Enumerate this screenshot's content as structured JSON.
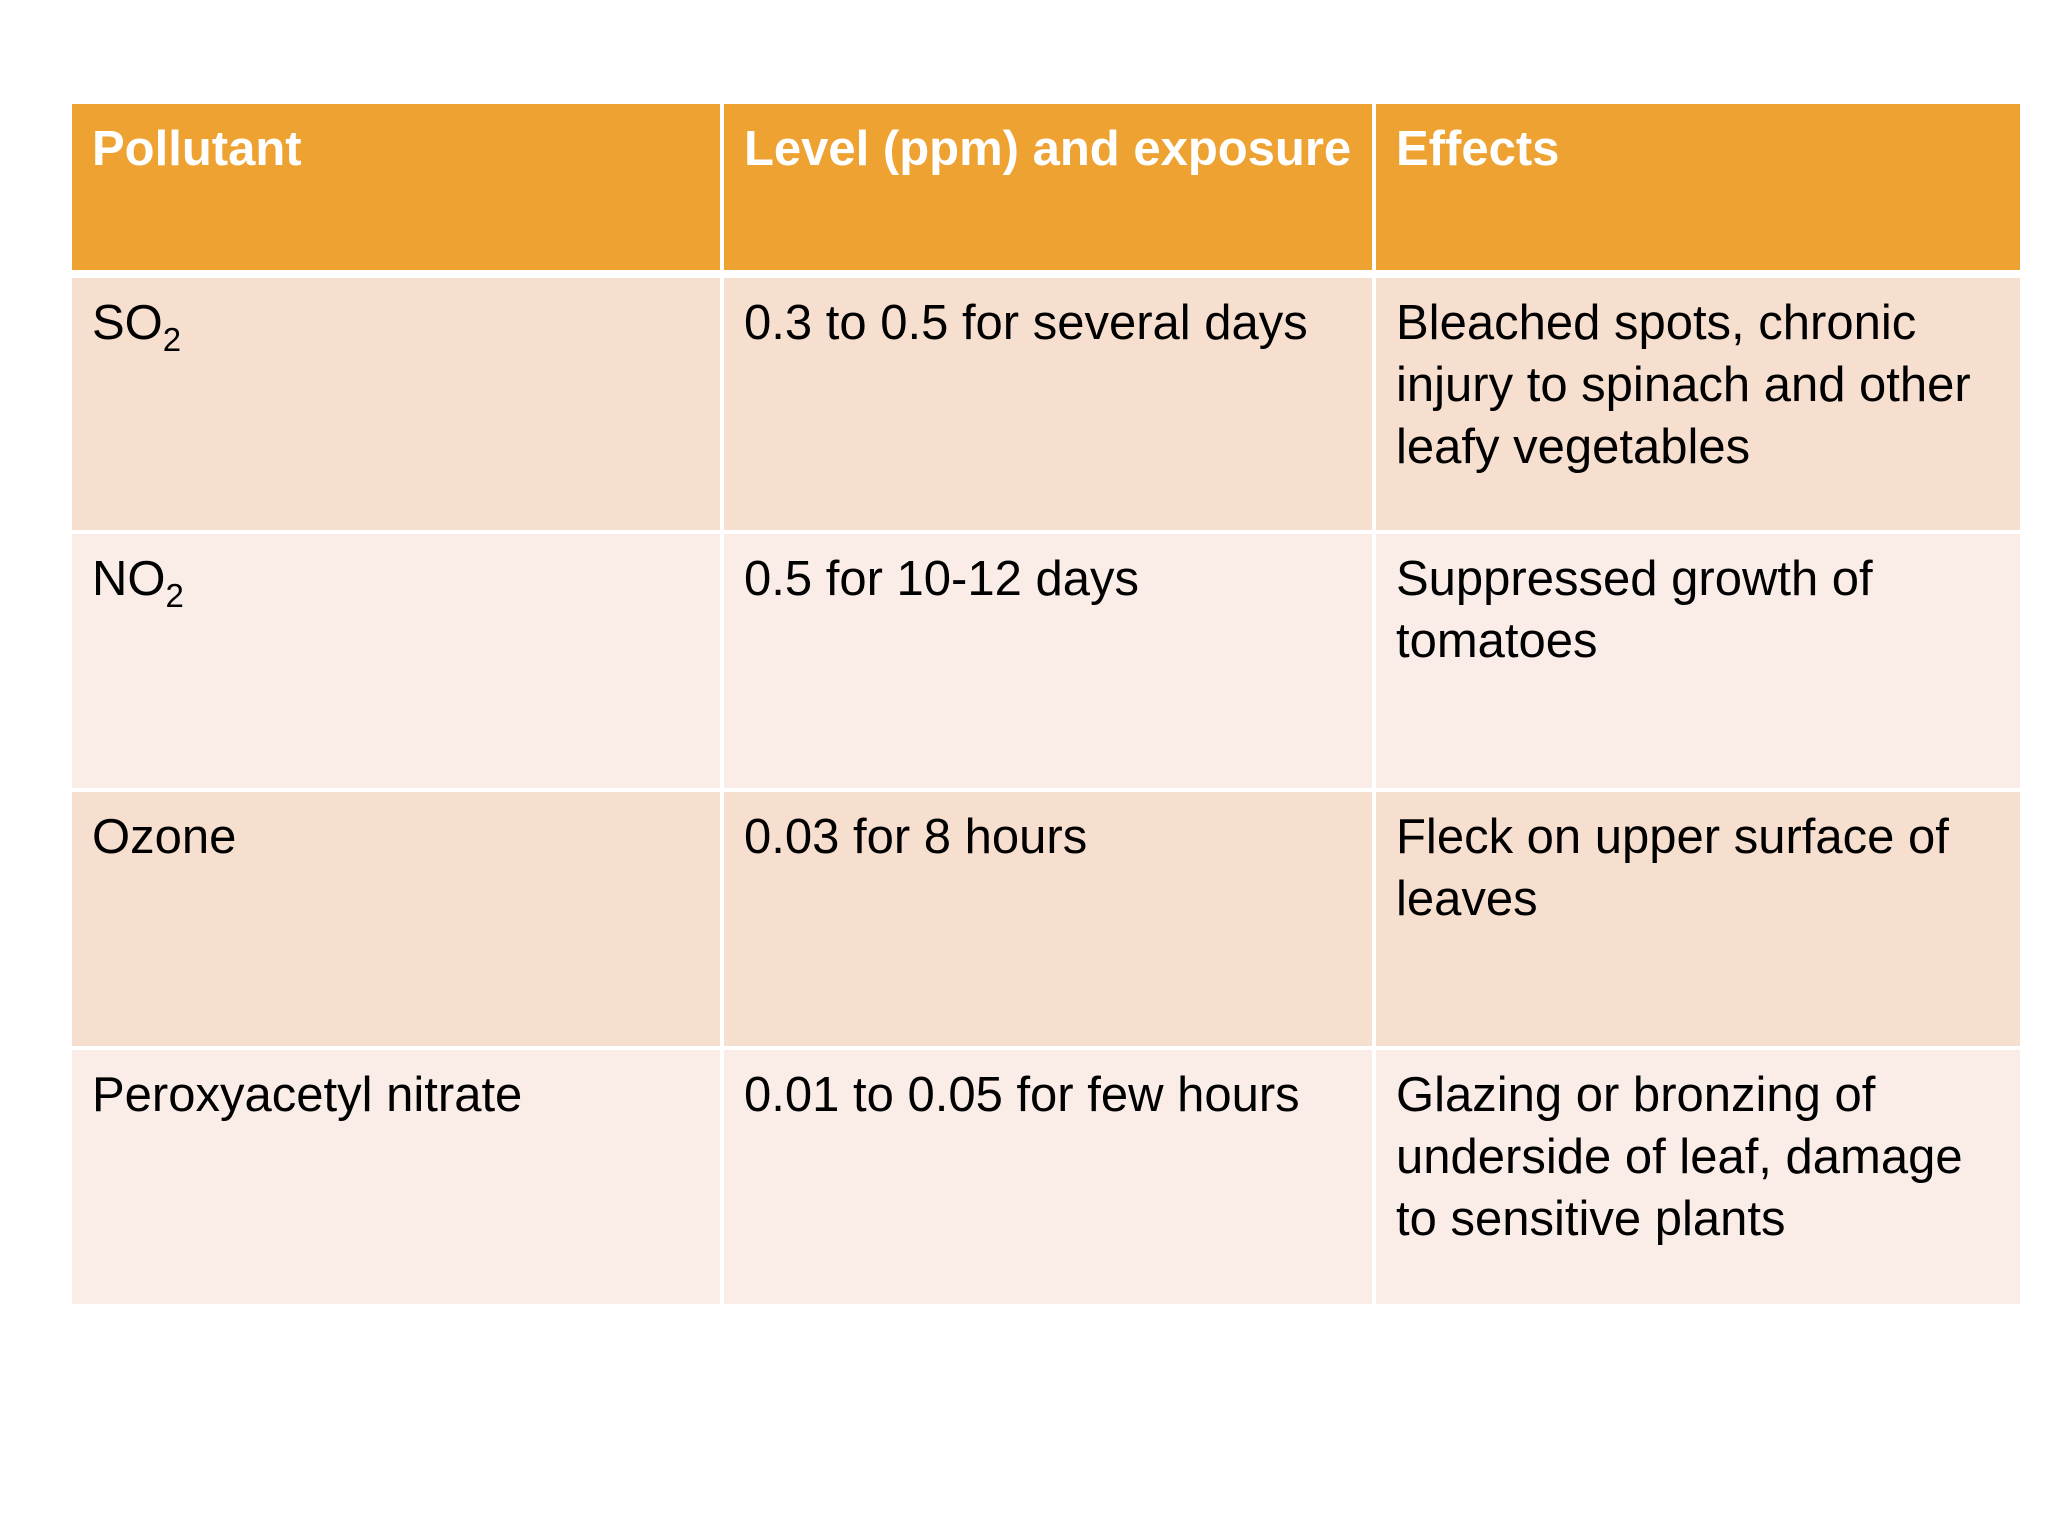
{
  "table": {
    "headers": [
      "Pollutant",
      "Level (ppm) and exposure",
      "Effects"
    ],
    "rows": [
      {
        "pollutant": {
          "base": "SO",
          "sub": "2"
        },
        "level": "0.3 to 0.5 for several days",
        "effects": "Bleached spots, chronic injury to spinach and other leafy vegetables"
      },
      {
        "pollutant": {
          "base": "NO",
          "sub": "2"
        },
        "level": "0.5 for 10-12 days",
        "effects": "Suppressed growth of tomatoes"
      },
      {
        "pollutant": {
          "base": "Ozone",
          "sub": ""
        },
        "level": "0.03 for 8 hours",
        "effects": "Fleck on upper surface of leaves"
      },
      {
        "pollutant": {
          "base": "Peroxyacetyl nitrate",
          "sub": ""
        },
        "level": "0.01 to 0.05 for few hours",
        "effects": "Glazing or bronzing of underside of leaf, damage to sensitive plants"
      }
    ]
  },
  "colors": {
    "header_bg": "#eda232",
    "row_dark": "#f6dfcf",
    "row_light": "#faede8"
  }
}
